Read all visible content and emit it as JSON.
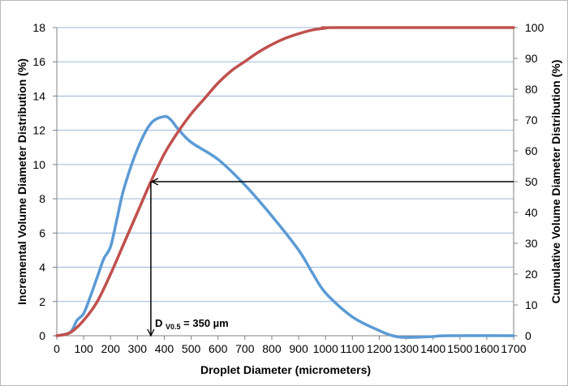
{
  "chart_data": {
    "type": "line",
    "xlabel": "Droplet Diameter (micrometers)",
    "ylabel_left": "Incremental Volume Diameter Distribution (%)",
    "ylabel_right": "Cumulative Volume Diameter Distribution (%)",
    "xlim": [
      0,
      1700
    ],
    "ylim_left": [
      0,
      18
    ],
    "ylim_right": [
      0,
      100
    ],
    "x_ticks": [
      0,
      100,
      200,
      300,
      400,
      500,
      600,
      700,
      800,
      900,
      1000,
      1100,
      1200,
      1300,
      1400,
      1500,
      1600,
      1700
    ],
    "y_ticks_left": [
      0,
      2,
      4,
      6,
      8,
      10,
      12,
      14,
      16,
      18
    ],
    "y_ticks_right": [
      0,
      10,
      20,
      30,
      40,
      50,
      60,
      70,
      80,
      90,
      100
    ],
    "grid": true,
    "series": [
      {
        "name": "Incremental",
        "axis": "left",
        "color": "#5b9bd5",
        "points": [
          [
            0,
            0
          ],
          [
            50,
            0.2
          ],
          [
            75,
            0.9
          ],
          [
            100,
            1.3
          ],
          [
            125,
            2.3
          ],
          [
            150,
            3.4
          ],
          [
            175,
            4.5
          ],
          [
            200,
            5.2
          ],
          [
            225,
            6.9
          ],
          [
            250,
            8.6
          ],
          [
            300,
            10.9
          ],
          [
            350,
            12.4
          ],
          [
            400,
            12.8
          ],
          [
            425,
            12.6
          ],
          [
            450,
            12.1
          ],
          [
            500,
            11.3
          ],
          [
            600,
            10.3
          ],
          [
            700,
            8.8
          ],
          [
            800,
            7.0
          ],
          [
            900,
            5.0
          ],
          [
            950,
            3.7
          ],
          [
            1000,
            2.5
          ],
          [
            1100,
            1.1
          ],
          [
            1200,
            0.3
          ],
          [
            1250,
            0.0
          ],
          [
            1300,
            -0.1
          ],
          [
            1400,
            -0.05
          ],
          [
            1450,
            0.0
          ],
          [
            1700,
            0.0
          ]
        ]
      },
      {
        "name": "Cumulative",
        "axis": "right",
        "color": "#c0504d",
        "points": [
          [
            0,
            0
          ],
          [
            50,
            1
          ],
          [
            100,
            5
          ],
          [
            150,
            11
          ],
          [
            200,
            20
          ],
          [
            250,
            30
          ],
          [
            300,
            40
          ],
          [
            350,
            50
          ],
          [
            400,
            59
          ],
          [
            450,
            66
          ],
          [
            500,
            72
          ],
          [
            550,
            77
          ],
          [
            600,
            82
          ],
          [
            650,
            86
          ],
          [
            700,
            89
          ],
          [
            750,
            92
          ],
          [
            800,
            94.5
          ],
          [
            850,
            96.5
          ],
          [
            900,
            98
          ],
          [
            950,
            99.2
          ],
          [
            1000,
            99.8
          ],
          [
            1050,
            100
          ],
          [
            1700,
            100
          ]
        ]
      }
    ],
    "annotation": {
      "label_main": "D",
      "label_sub": "V0.5",
      "label_value": " = 350 µm",
      "arrow_x": 350,
      "arrow_y_right": 50
    }
  }
}
